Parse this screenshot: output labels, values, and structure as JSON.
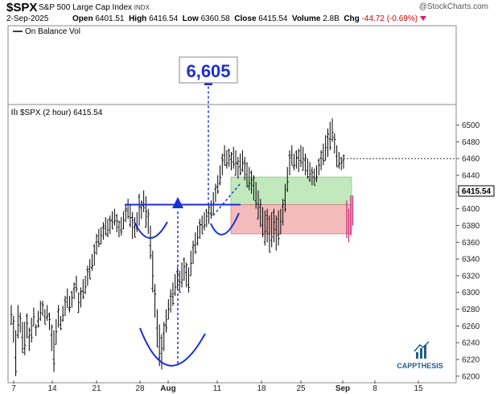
{
  "header": {
    "symbol": "$SPX",
    "name": "S&P 500 Large Cap Index",
    "exchange": "INDX",
    "credit": "@StockCharts.com",
    "date": "2-Sep-2025",
    "open_label": "Open",
    "open": "6401.51",
    "high_label": "High",
    "high": "6416.54",
    "low_label": "Low",
    "low": "6360.58",
    "close_label": "Close",
    "close": "6415.54",
    "volume_label": "Volume",
    "volume": "2.8B",
    "chg_label": "Chg",
    "chg": "-44.72 (-0.69%)"
  },
  "panels": {
    "obv_label": "On Balance Vol",
    "price_label": "$SPX (2 hour) 6415.54"
  },
  "annotations": {
    "target": "6,605",
    "last_price": "6415.54",
    "brand": "CAPPTHESIS"
  },
  "colors": {
    "bars": "#000000",
    "drawing_blue": "#1a2fd6",
    "green_zone": "#b8e6b3",
    "red_zone": "#f2b0b0",
    "target_bg": "#ffffff",
    "brand_blue": "#1f5e8c"
  },
  "chart_data": {
    "type": "ohlc",
    "title": "$SPX (2 hour) 6415.54",
    "y_ticks": [
      6200,
      6220,
      6240,
      6260,
      6280,
      6300,
      6320,
      6340,
      6360,
      6380,
      6400,
      6420,
      6440,
      6460,
      6480,
      6500
    ],
    "ylim": [
      6195,
      6515
    ],
    "x_ticks": [
      "7",
      "14",
      "21",
      "28",
      "Aug",
      "11",
      "18",
      "25",
      "Sep",
      "8",
      "15"
    ],
    "grid": false,
    "zones": [
      {
        "name": "green",
        "y0": 6405,
        "y1": 6438
      },
      {
        "name": "red",
        "y0": 6370,
        "y1": 6405
      }
    ],
    "neckline": 6405,
    "projection_target": 6605,
    "projection_dotted_level": 6460,
    "bars": [
      [
        6285,
        6262
      ],
      [
        6272,
        6240
      ],
      [
        6255,
        6200
      ],
      [
        6285,
        6245
      ],
      [
        6276,
        6252
      ],
      [
        6265,
        6228
      ],
      [
        6265,
        6225
      ],
      [
        6275,
        6245
      ],
      [
        6258,
        6230
      ],
      [
        6270,
        6240
      ],
      [
        6282,
        6260
      ],
      [
        6262,
        6248
      ],
      [
        6278,
        6258
      ],
      [
        6290,
        6266
      ],
      [
        6290,
        6272
      ],
      [
        6280,
        6262
      ],
      [
        6285,
        6266
      ],
      [
        6276,
        6255
      ],
      [
        6262,
        6230
      ],
      [
        6255,
        6205
      ],
      [
        6268,
        6238
      ],
      [
        6285,
        6258
      ],
      [
        6272,
        6255
      ],
      [
        6284,
        6265
      ],
      [
        6296,
        6272
      ],
      [
        6305,
        6282
      ],
      [
        6296,
        6276
      ],
      [
        6302,
        6282
      ],
      [
        6312,
        6292
      ],
      [
        6320,
        6300
      ],
      [
        6300,
        6276
      ],
      [
        6306,
        6282
      ],
      [
        6316,
        6292
      ],
      [
        6320,
        6298
      ],
      [
        6332,
        6308
      ],
      [
        6340,
        6316
      ],
      [
        6346,
        6326
      ],
      [
        6358,
        6332
      ],
      [
        6370,
        6345
      ],
      [
        6376,
        6354
      ],
      [
        6378,
        6358
      ],
      [
        6384,
        6363
      ],
      [
        6390,
        6368
      ],
      [
        6388,
        6366
      ],
      [
        6392,
        6370
      ],
      [
        6397,
        6376
      ],
      [
        6400,
        6380
      ],
      [
        6394,
        6372
      ],
      [
        6386,
        6366
      ],
      [
        6390,
        6368
      ],
      [
        6397,
        6376
      ],
      [
        6404,
        6384
      ],
      [
        6412,
        6388
      ],
      [
        6406,
        6378
      ],
      [
        6396,
        6364
      ],
      [
        6390,
        6366
      ],
      [
        6396,
        6372
      ],
      [
        6418,
        6380
      ],
      [
        6410,
        6388
      ],
      [
        6422,
        6396
      ],
      [
        6415,
        6378
      ],
      [
        6400,
        6370
      ],
      [
        6380,
        6340
      ],
      [
        6350,
        6300
      ],
      [
        6310,
        6270
      ],
      [
        6280,
        6235
      ],
      [
        6262,
        6212
      ],
      [
        6250,
        6208
      ],
      [
        6265,
        6230
      ],
      [
        6280,
        6252
      ],
      [
        6292,
        6268
      ],
      [
        6304,
        6276
      ],
      [
        6312,
        6284
      ],
      [
        6322,
        6296
      ],
      [
        6330,
        6304
      ],
      [
        6326,
        6300
      ],
      [
        6336,
        6306
      ],
      [
        6342,
        6314
      ],
      [
        6336,
        6306
      ],
      [
        6330,
        6300
      ],
      [
        6350,
        6320
      ],
      [
        6362,
        6334
      ],
      [
        6372,
        6346
      ],
      [
        6380,
        6356
      ],
      [
        6388,
        6364
      ],
      [
        6392,
        6370
      ],
      [
        6396,
        6374
      ],
      [
        6400,
        6378
      ],
      [
        6404,
        6382
      ],
      [
        6410,
        6388
      ],
      [
        6420,
        6394
      ],
      [
        6430,
        6408
      ],
      [
        6440,
        6418
      ],
      [
        6452,
        6428
      ],
      [
        6466,
        6440
      ],
      [
        6476,
        6452
      ],
      [
        6470,
        6448
      ],
      [
        6472,
        6450
      ],
      [
        6468,
        6446
      ],
      [
        6474,
        6448
      ],
      [
        6470,
        6440
      ],
      [
        6462,
        6436
      ],
      [
        6466,
        6440
      ],
      [
        6470,
        6444
      ],
      [
        6462,
        6434
      ],
      [
        6456,
        6426
      ],
      [
        6450,
        6422
      ],
      [
        6446,
        6418
      ],
      [
        6440,
        6410
      ],
      [
        6432,
        6400
      ],
      [
        6422,
        6388
      ],
      [
        6412,
        6378
      ],
      [
        6402,
        6366
      ],
      [
        6398,
        6356
      ],
      [
        6400,
        6360
      ],
      [
        6392,
        6348
      ],
      [
        6396,
        6354
      ],
      [
        6400,
        6360
      ],
      [
        6392,
        6350
      ],
      [
        6398,
        6356
      ],
      [
        6400,
        6370
      ],
      [
        6412,
        6380
      ],
      [
        6430,
        6396
      ],
      [
        6450,
        6420
      ],
      [
        6470,
        6440
      ],
      [
        6476,
        6452
      ],
      [
        6466,
        6446
      ],
      [
        6470,
        6448
      ],
      [
        6472,
        6444
      ],
      [
        6476,
        6450
      ],
      [
        6474,
        6446
      ],
      [
        6466,
        6440
      ],
      [
        6460,
        6436
      ],
      [
        6456,
        6432
      ],
      [
        6450,
        6428
      ],
      [
        6448,
        6428
      ],
      [
        6452,
        6432
      ],
      [
        6460,
        6440
      ],
      [
        6470,
        6446
      ],
      [
        6478,
        6452
      ],
      [
        6488,
        6458
      ],
      [
        6496,
        6462
      ],
      [
        6504,
        6470
      ],
      [
        6508,
        6480
      ],
      [
        6490,
        6466
      ],
      [
        6476,
        6450
      ],
      [
        6468,
        6448
      ],
      [
        6462,
        6446
      ],
      [
        6465,
        6448
      ]
    ],
    "last_session_bars": [
      [
        6410,
        6365
      ],
      [
        6400,
        6360
      ],
      [
        6416,
        6368
      ],
      [
        6416,
        6380
      ]
    ]
  }
}
